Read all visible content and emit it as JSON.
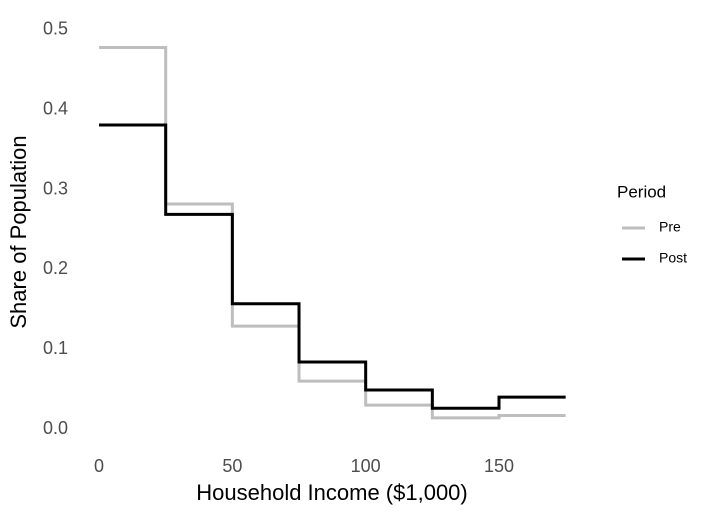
{
  "chart_data": {
    "type": "line",
    "step": "post",
    "x_label": "Household Income ($1,000)",
    "y_label": "Share of Population",
    "x": [
      0,
      25,
      50,
      75,
      100,
      125,
      150,
      175
    ],
    "series": [
      {
        "name": "Pre",
        "color": "#bebebe",
        "values": [
          0.478,
          0.282,
          0.129,
          0.06,
          0.03,
          0.014,
          0.017,
          0.017
        ]
      },
      {
        "name": "Post",
        "color": "#000000",
        "values": [
          0.381,
          0.269,
          0.157,
          0.084,
          0.049,
          0.026,
          0.04,
          0.04
        ]
      }
    ],
    "xlim": [
      -8.75,
      183.75
    ],
    "xticks": [
      0,
      50,
      100,
      150
    ],
    "ylim": [
      -0.025,
      0.51
    ],
    "yticks": [
      0.0,
      0.1,
      0.2,
      0.3,
      0.4,
      0.5
    ],
    "legend_title": "Period",
    "legend": "right",
    "grid": false
  }
}
